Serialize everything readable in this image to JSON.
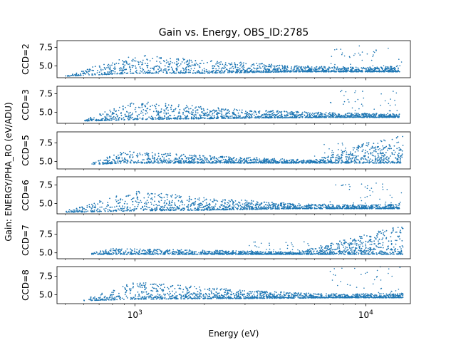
{
  "chart_data": {
    "type": "scatter",
    "title": "Gain vs. Energy, OBS_ID:2785",
    "xlabel": "Energy (eV)",
    "ylabel": "Gain: ENERGY/PHA_RO (eV/ADU)",
    "xscale": "log",
    "xlim": [
      460,
      15600
    ],
    "x_tick_labels": [
      "10^3",
      "10^4"
    ],
    "x_ticks": [
      1000,
      10000
    ],
    "y_ticks": [
      5.0,
      7.5
    ],
    "y_tick_labels": [
      "5.0",
      "7.5"
    ],
    "marker_color": "#1f77b4",
    "grid": false,
    "panels": [
      {
        "label": "CCD=2",
        "ylim": [
          3.4,
          8.4
        ],
        "envelope": [
          [
            500,
            3.6,
            3.8
          ],
          [
            1000,
            4.0,
            6.5
          ],
          [
            2000,
            4.0,
            5.8
          ],
          [
            5000,
            4.2,
            5.0
          ],
          [
            10000,
            4.2,
            4.8
          ],
          [
            14000,
            4.2,
            5.0
          ]
        ],
        "outliers_range": [
          7000,
          14500,
          5.0,
          8.0
        ]
      },
      {
        "label": "CCD=3",
        "ylim": [
          3.5,
          8.5
        ],
        "envelope": [
          [
            600,
            3.8,
            4.0
          ],
          [
            1000,
            4.0,
            6.5
          ],
          [
            3000,
            4.2,
            5.3
          ],
          [
            8000,
            4.3,
            4.9
          ],
          [
            14000,
            4.3,
            4.8
          ]
        ],
        "outliers_range": [
          7000,
          14500,
          5.0,
          8.0
        ]
      },
      {
        "label": "CCD=5",
        "ylim": [
          4.0,
          9.0
        ],
        "envelope": [
          [
            650,
            4.6,
            4.8
          ],
          [
            900,
            4.8,
            6.5
          ],
          [
            2000,
            4.8,
            5.8
          ],
          [
            6000,
            4.8,
            5.2
          ],
          [
            10000,
            4.8,
            7.5
          ],
          [
            14500,
            4.8,
            8.5
          ]
        ],
        "outliers_range": [
          6000,
          12000,
          5.5,
          7.5
        ]
      },
      {
        "label": "CCD=6",
        "ylim": [
          3.6,
          8.6
        ],
        "envelope": [
          [
            500,
            3.8,
            4.0
          ],
          [
            1000,
            4.0,
            6.8
          ],
          [
            2000,
            4.1,
            5.8
          ],
          [
            5000,
            4.3,
            5.0
          ],
          [
            10000,
            4.3,
            4.8
          ],
          [
            14000,
            4.3,
            5.0
          ]
        ],
        "outliers_range": [
          7000,
          14500,
          5.0,
          8.0
        ]
      },
      {
        "label": "CCD=7",
        "ylim": [
          4.2,
          9.2
        ],
        "envelope": [
          [
            650,
            4.8,
            5.0
          ],
          [
            800,
            4.8,
            5.6
          ],
          [
            5000,
            4.8,
            5.1
          ],
          [
            10000,
            4.8,
            7.5
          ],
          [
            14500,
            4.8,
            8.8
          ]
        ],
        "outliers_range": [
          3000,
          10000,
          5.2,
          6.5
        ]
      },
      {
        "label": "CCD=8",
        "ylim": [
          3.8,
          8.8
        ],
        "envelope": [
          [
            600,
            4.2,
            4.4
          ],
          [
            1000,
            4.4,
            6.8
          ],
          [
            3000,
            4.5,
            5.6
          ],
          [
            8000,
            4.6,
            5.1
          ],
          [
            14500,
            4.6,
            5.2
          ]
        ],
        "outliers_range": [
          7000,
          14500,
          5.2,
          8.8
        ]
      }
    ]
  }
}
